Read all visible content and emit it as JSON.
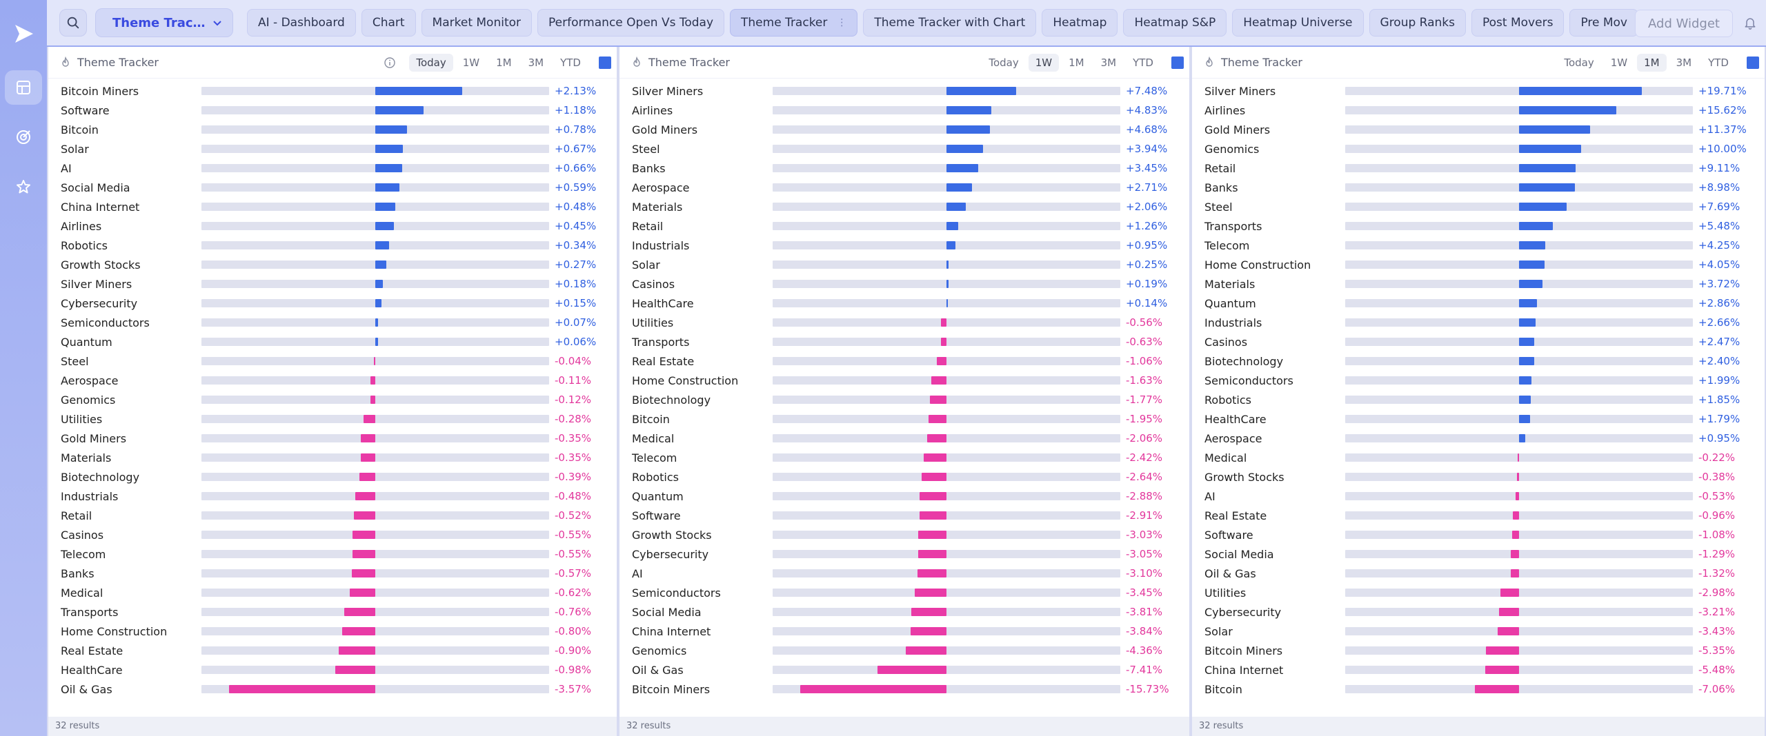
{
  "layout_select": {
    "label": "Theme Trac…"
  },
  "tabs": [
    {
      "label": "AI - Dashboard"
    },
    {
      "label": "Chart"
    },
    {
      "label": "Market Monitor"
    },
    {
      "label": "Performance Open Vs Today"
    },
    {
      "label": "Theme Tracker",
      "active": true
    },
    {
      "label": "Theme Tracker with Chart"
    },
    {
      "label": "Heatmap"
    },
    {
      "label": "Heatmap S&P"
    },
    {
      "label": "Heatmap Universe"
    },
    {
      "label": "Group Ranks"
    },
    {
      "label": "Post Movers"
    },
    {
      "label": "Pre Mov"
    }
  ],
  "add_widget_label": "Add Widget",
  "colors": {
    "positive": "#3a6be4",
    "negative": "#e93aa6",
    "accent": "#3a4be0"
  },
  "icons": {
    "logo": "play-logo-icon",
    "rail": [
      "layout-icon",
      "target-icon",
      "star-icon"
    ],
    "search": "search-icon",
    "bell": "bell-icon",
    "panel": "fire-icon",
    "info": "info-icon"
  },
  "panels": [
    {
      "title": "Theme Tracker",
      "show_info": true,
      "periods": [
        "Today",
        "1W",
        "1M",
        "3M",
        "YTD"
      ],
      "selected_period": "Today",
      "scale": 3.57,
      "footer": "32 results",
      "rows": [
        {
          "name": "Bitcoin Miners",
          "value": 2.13,
          "label": "+2.13%"
        },
        {
          "name": "Software",
          "value": 1.18,
          "label": "+1.18%"
        },
        {
          "name": "Bitcoin",
          "value": 0.78,
          "label": "+0.78%"
        },
        {
          "name": "Solar",
          "value": 0.67,
          "label": "+0.67%"
        },
        {
          "name": "AI",
          "value": 0.66,
          "label": "+0.66%"
        },
        {
          "name": "Social Media",
          "value": 0.59,
          "label": "+0.59%"
        },
        {
          "name": "China Internet",
          "value": 0.48,
          "label": "+0.48%"
        },
        {
          "name": "Airlines",
          "value": 0.45,
          "label": "+0.45%"
        },
        {
          "name": "Robotics",
          "value": 0.34,
          "label": "+0.34%"
        },
        {
          "name": "Growth Stocks",
          "value": 0.27,
          "label": "+0.27%"
        },
        {
          "name": "Silver Miners",
          "value": 0.18,
          "label": "+0.18%"
        },
        {
          "name": "Cybersecurity",
          "value": 0.15,
          "label": "+0.15%"
        },
        {
          "name": "Semiconductors",
          "value": 0.07,
          "label": "+0.07%"
        },
        {
          "name": "Quantum",
          "value": 0.06,
          "label": "+0.06%"
        },
        {
          "name": "Steel",
          "value": -0.04,
          "label": "-0.04%"
        },
        {
          "name": "Aerospace",
          "value": -0.11,
          "label": "-0.11%"
        },
        {
          "name": "Genomics",
          "value": -0.12,
          "label": "-0.12%"
        },
        {
          "name": "Utilities",
          "value": -0.28,
          "label": "-0.28%"
        },
        {
          "name": "Gold Miners",
          "value": -0.35,
          "label": "-0.35%"
        },
        {
          "name": "Materials",
          "value": -0.35,
          "label": "-0.35%"
        },
        {
          "name": "Biotechnology",
          "value": -0.39,
          "label": "-0.39%"
        },
        {
          "name": "Industrials",
          "value": -0.48,
          "label": "-0.48%"
        },
        {
          "name": "Retail",
          "value": -0.52,
          "label": "-0.52%"
        },
        {
          "name": "Casinos",
          "value": -0.55,
          "label": "-0.55%"
        },
        {
          "name": "Telecom",
          "value": -0.55,
          "label": "-0.55%"
        },
        {
          "name": "Banks",
          "value": -0.57,
          "label": "-0.57%"
        },
        {
          "name": "Medical",
          "value": -0.62,
          "label": "-0.62%"
        },
        {
          "name": "Transports",
          "value": -0.76,
          "label": "-0.76%"
        },
        {
          "name": "Home Construction",
          "value": -0.8,
          "label": "-0.80%"
        },
        {
          "name": "Real Estate",
          "value": -0.9,
          "label": "-0.90%"
        },
        {
          "name": "HealthCare",
          "value": -0.98,
          "label": "-0.98%"
        },
        {
          "name": "Oil & Gas",
          "value": -3.57,
          "label": "-3.57%"
        }
      ]
    },
    {
      "title": "Theme Tracker",
      "show_info": false,
      "periods": [
        "Today",
        "1W",
        "1M",
        "3M",
        "YTD"
      ],
      "selected_period": "1W",
      "scale": 15.73,
      "footer": "32 results",
      "rows": [
        {
          "name": "Silver Miners",
          "value": 7.48,
          "label": "+7.48%"
        },
        {
          "name": "Airlines",
          "value": 4.83,
          "label": "+4.83%"
        },
        {
          "name": "Gold Miners",
          "value": 4.68,
          "label": "+4.68%"
        },
        {
          "name": "Steel",
          "value": 3.94,
          "label": "+3.94%"
        },
        {
          "name": "Banks",
          "value": 3.45,
          "label": "+3.45%"
        },
        {
          "name": "Aerospace",
          "value": 2.71,
          "label": "+2.71%"
        },
        {
          "name": "Materials",
          "value": 2.06,
          "label": "+2.06%"
        },
        {
          "name": "Retail",
          "value": 1.26,
          "label": "+1.26%"
        },
        {
          "name": "Industrials",
          "value": 0.95,
          "label": "+0.95%"
        },
        {
          "name": "Solar",
          "value": 0.25,
          "label": "+0.25%"
        },
        {
          "name": "Casinos",
          "value": 0.19,
          "label": "+0.19%"
        },
        {
          "name": "HealthCare",
          "value": 0.14,
          "label": "+0.14%"
        },
        {
          "name": "Utilities",
          "value": -0.56,
          "label": "-0.56%"
        },
        {
          "name": "Transports",
          "value": -0.63,
          "label": "-0.63%"
        },
        {
          "name": "Real Estate",
          "value": -1.06,
          "label": "-1.06%"
        },
        {
          "name": "Home Construction",
          "value": -1.63,
          "label": "-1.63%"
        },
        {
          "name": "Biotechnology",
          "value": -1.77,
          "label": "-1.77%"
        },
        {
          "name": "Bitcoin",
          "value": -1.95,
          "label": "-1.95%"
        },
        {
          "name": "Medical",
          "value": -2.06,
          "label": "-2.06%"
        },
        {
          "name": "Telecom",
          "value": -2.42,
          "label": "-2.42%"
        },
        {
          "name": "Robotics",
          "value": -2.64,
          "label": "-2.64%"
        },
        {
          "name": "Quantum",
          "value": -2.88,
          "label": "-2.88%"
        },
        {
          "name": "Software",
          "value": -2.91,
          "label": "-2.91%"
        },
        {
          "name": "Growth Stocks",
          "value": -3.03,
          "label": "-3.03%"
        },
        {
          "name": "Cybersecurity",
          "value": -3.05,
          "label": "-3.05%"
        },
        {
          "name": "AI",
          "value": -3.1,
          "label": "-3.10%"
        },
        {
          "name": "Semiconductors",
          "value": -3.45,
          "label": "-3.45%"
        },
        {
          "name": "Social Media",
          "value": -3.81,
          "label": "-3.81%"
        },
        {
          "name": "China Internet",
          "value": -3.84,
          "label": "-3.84%"
        },
        {
          "name": "Genomics",
          "value": -4.36,
          "label": "-4.36%"
        },
        {
          "name": "Oil & Gas",
          "value": -7.41,
          "label": "-7.41%"
        },
        {
          "name": "Bitcoin Miners",
          "value": -15.73,
          "label": "-15.73%"
        }
      ]
    },
    {
      "title": "Theme Tracker",
      "show_info": false,
      "periods": [
        "Today",
        "1W",
        "1M",
        "3M",
        "YTD"
      ],
      "selected_period": "1M",
      "scale": 23.5,
      "footer": "32 results",
      "rows": [
        {
          "name": "Silver Miners",
          "value": 19.71,
          "label": "+19.71%"
        },
        {
          "name": "Airlines",
          "value": 15.62,
          "label": "+15.62%"
        },
        {
          "name": "Gold Miners",
          "value": 11.37,
          "label": "+11.37%"
        },
        {
          "name": "Genomics",
          "value": 10.0,
          "label": "+10.00%"
        },
        {
          "name": "Retail",
          "value": 9.11,
          "label": "+9.11%"
        },
        {
          "name": "Banks",
          "value": 8.98,
          "label": "+8.98%"
        },
        {
          "name": "Steel",
          "value": 7.69,
          "label": "+7.69%"
        },
        {
          "name": "Transports",
          "value": 5.48,
          "label": "+5.48%"
        },
        {
          "name": "Telecom",
          "value": 4.25,
          "label": "+4.25%"
        },
        {
          "name": "Home Construction",
          "value": 4.05,
          "label": "+4.05%"
        },
        {
          "name": "Materials",
          "value": 3.72,
          "label": "+3.72%"
        },
        {
          "name": "Quantum",
          "value": 2.86,
          "label": "+2.86%"
        },
        {
          "name": "Industrials",
          "value": 2.66,
          "label": "+2.66%"
        },
        {
          "name": "Casinos",
          "value": 2.47,
          "label": "+2.47%"
        },
        {
          "name": "Biotechnology",
          "value": 2.4,
          "label": "+2.40%"
        },
        {
          "name": "Semiconductors",
          "value": 1.99,
          "label": "+1.99%"
        },
        {
          "name": "Robotics",
          "value": 1.85,
          "label": "+1.85%"
        },
        {
          "name": "HealthCare",
          "value": 1.79,
          "label": "+1.79%"
        },
        {
          "name": "Aerospace",
          "value": 0.95,
          "label": "+0.95%"
        },
        {
          "name": "Medical",
          "value": -0.22,
          "label": "-0.22%"
        },
        {
          "name": "Growth Stocks",
          "value": -0.38,
          "label": "-0.38%"
        },
        {
          "name": "AI",
          "value": -0.53,
          "label": "-0.53%"
        },
        {
          "name": "Real Estate",
          "value": -0.96,
          "label": "-0.96%"
        },
        {
          "name": "Software",
          "value": -1.08,
          "label": "-1.08%"
        },
        {
          "name": "Social Media",
          "value": -1.29,
          "label": "-1.29%"
        },
        {
          "name": "Oil & Gas",
          "value": -1.32,
          "label": "-1.32%"
        },
        {
          "name": "Utilities",
          "value": -2.98,
          "label": "-2.98%"
        },
        {
          "name": "Cybersecurity",
          "value": -3.21,
          "label": "-3.21%"
        },
        {
          "name": "Solar",
          "value": -3.43,
          "label": "-3.43%"
        },
        {
          "name": "Bitcoin Miners",
          "value": -5.35,
          "label": "-5.35%"
        },
        {
          "name": "China Internet",
          "value": -5.48,
          "label": "-5.48%"
        },
        {
          "name": "Bitcoin",
          "value": -7.06,
          "label": "-7.06%"
        }
      ]
    }
  ]
}
